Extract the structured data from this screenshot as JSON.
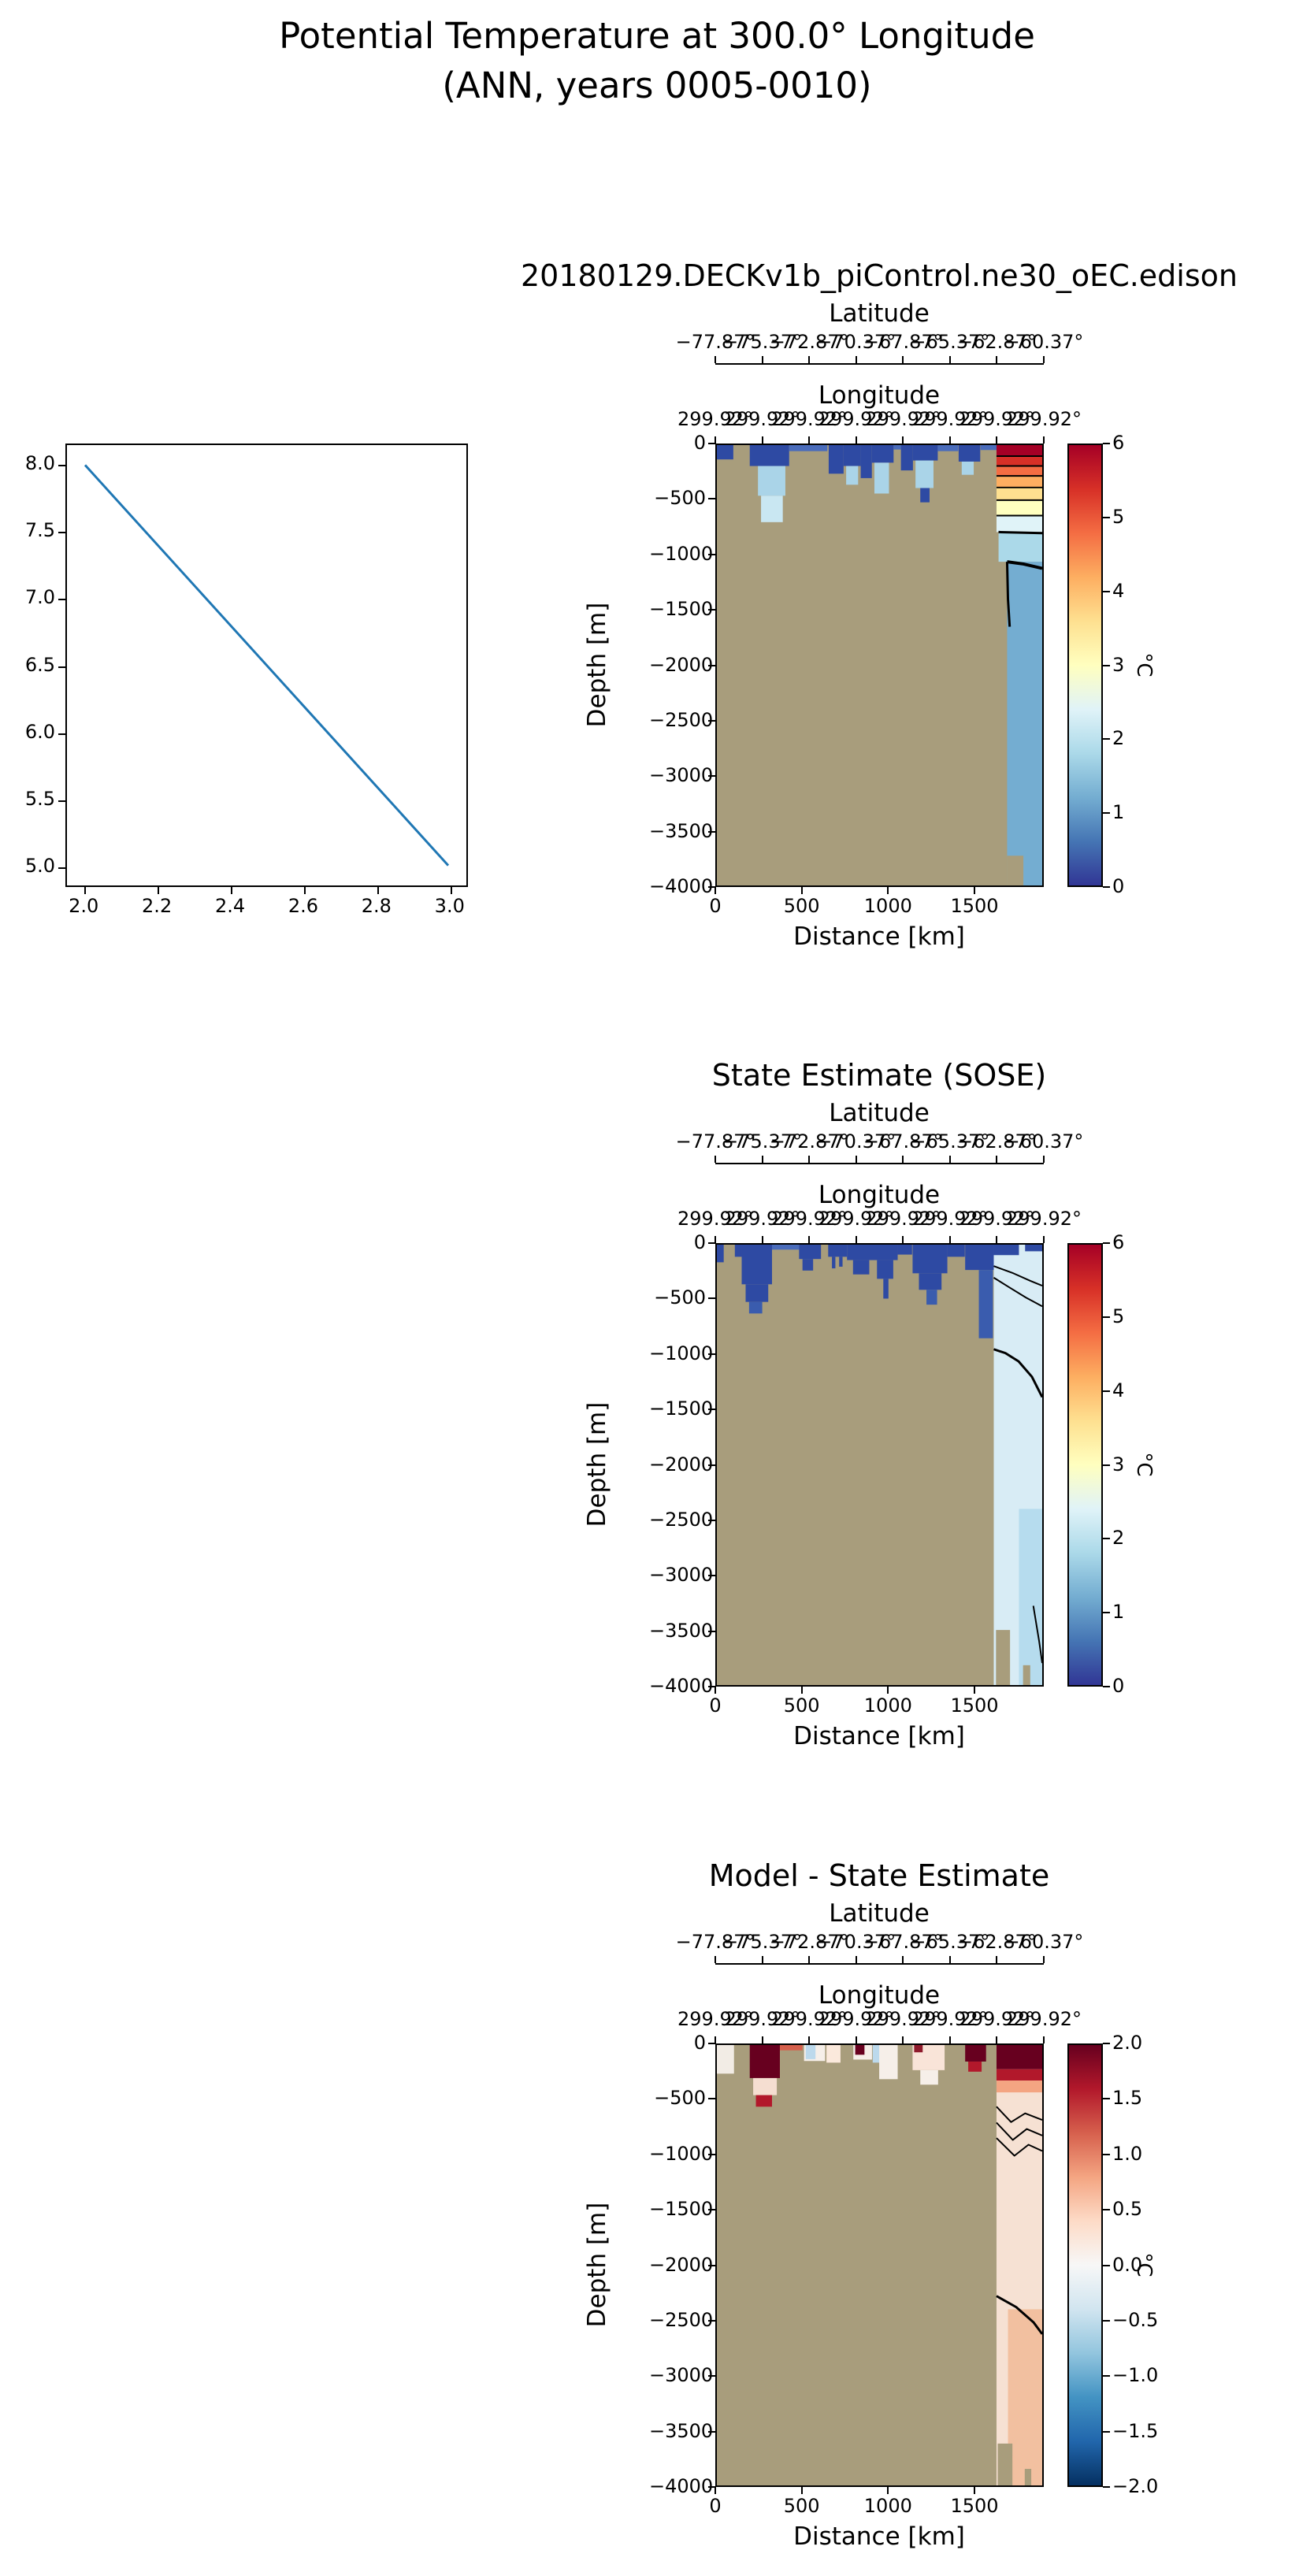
{
  "figure": {
    "title_line1": "Potential Temperature at 300.0° Longitude",
    "title_line2": "(ANN, years 0005-0010)"
  },
  "axes_common": {
    "latitude_label": "Latitude",
    "latitude_ticks": [
      "−77.87°",
      "−75.37°",
      "−72.87°",
      "−70.37°",
      "−67.87°",
      "−65.37°",
      "−62.87°",
      "−60.37°"
    ],
    "longitude_label": "Longitude",
    "longitude_ticks": [
      "299.92°",
      "299.92°",
      "299.92°",
      "299.92°",
      "299.92°",
      "299.92°",
      "299.92°",
      "299.92°"
    ],
    "depth_label": "Depth [m]",
    "depth_ticks": [
      "0",
      "−500",
      "−1000",
      "−1500",
      "−2000",
      "−2500",
      "−3000",
      "−3500",
      "−4000"
    ],
    "distance_label": "Distance [km]",
    "distance_ticks": [
      "0",
      "500",
      "1000",
      "1500"
    ],
    "colorbar_unit": "°C",
    "land_color": "#a89d7c"
  },
  "chart_data": [
    {
      "type": "line",
      "title": "",
      "x": [
        2.0,
        3.0
      ],
      "y": [
        8.0,
        5.0
      ],
      "xlim": [
        1.95,
        3.05
      ],
      "ylim": [
        4.85,
        8.15
      ],
      "x_ticks": [
        "2.0",
        "2.2",
        "2.4",
        "2.6",
        "2.8",
        "3.0"
      ],
      "x_tick_values": [
        2.0,
        2.2,
        2.4,
        2.6,
        2.8,
        3.0
      ],
      "y_ticks": [
        "8.0",
        "7.5",
        "7.0",
        "6.5",
        "6.0",
        "5.5",
        "5.0"
      ],
      "y_tick_values": [
        8.0,
        7.5,
        7.0,
        6.5,
        6.0,
        5.5,
        5.0
      ],
      "line_color": "#1f77b4"
    },
    {
      "type": "heatmap",
      "title": "20180129.DECKv1b_piControl.ne30_oEC.edison",
      "xlabel": "Distance [km]",
      "ylabel": "Depth [m]",
      "top_axis_1": "Latitude",
      "top_axis_2": "Longitude",
      "xlim_km": [
        0,
        1900
      ],
      "ylim_m": [
        0,
        -4000
      ],
      "colorbar": {
        "min": 0,
        "max": 6,
        "unit": "°C",
        "ticks_top_to_bottom": [
          "6",
          "5",
          "4",
          "3",
          "2",
          "1",
          "0"
        ],
        "colors_bottom_to_top": [
          "#313695",
          "#4575b4",
          "#74add1",
          "#abd9e9",
          "#e0f3f8",
          "#ffffbf",
          "#fee090",
          "#fdae61",
          "#f46d43",
          "#d73027",
          "#a50026"
        ]
      },
      "features": [
        [
          0,
          96,
          0,
          -130,
          "#2e4aa3"
        ],
        [
          192,
          422,
          0,
          -190,
          "#2e4aa3"
        ],
        [
          240,
          400,
          -190,
          -460,
          "#aad4e8"
        ],
        [
          258,
          385,
          -460,
          -700,
          "#c9e7f2"
        ],
        [
          422,
          645,
          0,
          -55,
          "#4a6cbb"
        ],
        [
          653,
          740,
          0,
          -260,
          "#2e4aa3"
        ],
        [
          740,
          840,
          0,
          -190,
          "#2e4aa3"
        ],
        [
          755,
          825,
          -190,
          -360,
          "#aad4e8"
        ],
        [
          840,
          905,
          0,
          -300,
          "#2e4aa3"
        ],
        [
          905,
          1032,
          0,
          -160,
          "#2e4aa3"
        ],
        [
          920,
          1005,
          -160,
          -440,
          "#aad4e8"
        ],
        [
          1032,
          1075,
          0,
          -40,
          "#4a6cbb"
        ],
        [
          1075,
          1145,
          0,
          -230,
          "#2e4aa3"
        ],
        [
          1145,
          1290,
          0,
          -140,
          "#2e4aa3"
        ],
        [
          1160,
          1265,
          -140,
          -390,
          "#aad4e8"
        ],
        [
          1188,
          1242,
          -390,
          -520,
          "#2e4aa3"
        ],
        [
          1290,
          1410,
          0,
          -55,
          "#4a6cbb"
        ],
        [
          1412,
          1538,
          0,
          -150,
          "#2e4aa3"
        ],
        [
          1430,
          1500,
          -150,
          -270,
          "#aad4e8"
        ],
        [
          1540,
          1633,
          0,
          -45,
          "#4a6cbb"
        ],
        [
          1633,
          1900,
          0,
          -100,
          "#a50026"
        ],
        [
          1633,
          1900,
          -100,
          -190,
          "#d73027"
        ],
        [
          1633,
          1900,
          -190,
          -280,
          "#f46d43"
        ],
        [
          1633,
          1900,
          -280,
          -385,
          "#fdae61"
        ],
        [
          1633,
          1900,
          -385,
          -500,
          "#fee090"
        ],
        [
          1633,
          1900,
          -500,
          -640,
          "#ffffbf"
        ],
        [
          1633,
          1900,
          -640,
          -790,
          "#e0f3f8"
        ],
        [
          1645,
          1900,
          -790,
          -1060,
          "#abd9e9"
        ],
        [
          1695,
          1900,
          -1060,
          -4000,
          "#74add1"
        ],
        [
          1695,
          1790,
          -3730,
          -4000,
          "#a89d7c"
        ]
      ],
      "contours": [
        {
          "w": 2,
          "pts": [
            [
              1633,
              -100
            ],
            [
              1900,
              -100
            ]
          ]
        },
        {
          "w": 2,
          "pts": [
            [
              1633,
              -190
            ],
            [
              1900,
              -190
            ]
          ]
        },
        {
          "w": 2,
          "pts": [
            [
              1633,
              -280
            ],
            [
              1900,
              -280
            ]
          ]
        },
        {
          "w": 2,
          "pts": [
            [
              1633,
              -385
            ],
            [
              1900,
              -385
            ]
          ]
        },
        {
          "w": 2,
          "pts": [
            [
              1633,
              -500
            ],
            [
              1900,
              -500
            ]
          ]
        },
        {
          "w": 2,
          "pts": [
            [
              1633,
              -640
            ],
            [
              1900,
              -640
            ]
          ]
        },
        {
          "w": 3,
          "pts": [
            [
              1645,
              -790
            ],
            [
              1900,
              -800
            ]
          ]
        },
        {
          "w": 4,
          "pts": [
            [
              1695,
              -1060
            ],
            [
              1790,
              -1080
            ],
            [
              1900,
              -1120
            ]
          ]
        },
        {
          "w": 3,
          "pts": [
            [
              1695,
              -1060
            ],
            [
              1700,
              -1400
            ],
            [
              1710,
              -1650
            ]
          ]
        }
      ]
    },
    {
      "type": "heatmap",
      "title": "State Estimate (SOSE)",
      "xlabel": "Distance [km]",
      "ylabel": "Depth [m]",
      "top_axis_1": "Latitude",
      "top_axis_2": "Longitude",
      "xlim_km": [
        0,
        1900
      ],
      "ylim_m": [
        0,
        -4000
      ],
      "colorbar": {
        "min": 0,
        "max": 6,
        "unit": "°C",
        "ticks_top_to_bottom": [
          "6",
          "5",
          "4",
          "3",
          "2",
          "1",
          "0"
        ],
        "colors_bottom_to_top": [
          "#313695",
          "#4575b4",
          "#74add1",
          "#abd9e9",
          "#e0f3f8",
          "#ffffbf",
          "#fee090",
          "#fdae61",
          "#f46d43",
          "#d73027",
          "#a50026"
        ]
      },
      "features": [
        [
          0,
          40,
          0,
          -160,
          "#2e4aa3"
        ],
        [
          105,
          145,
          0,
          -110,
          "#2e4aa3"
        ],
        [
          145,
          322,
          0,
          -360,
          "#2e4aa3"
        ],
        [
          168,
          300,
          -360,
          -520,
          "#2e4aa3"
        ],
        [
          188,
          265,
          -520,
          -625,
          "#3a5cae"
        ],
        [
          322,
          480,
          0,
          -45,
          "#4a6cbb"
        ],
        [
          480,
          608,
          0,
          -130,
          "#2e4aa3"
        ],
        [
          500,
          562,
          -130,
          -235,
          "#2e4aa3"
        ],
        [
          650,
          760,
          0,
          -110,
          "#2e4aa3"
        ],
        [
          672,
          692,
          -110,
          -215,
          "#2e4aa3"
        ],
        [
          714,
          734,
          -110,
          -200,
          "#2e4aa3"
        ],
        [
          760,
          1056,
          0,
          -140,
          "#2e4aa3"
        ],
        [
          795,
          890,
          -140,
          -270,
          "#2e4aa3"
        ],
        [
          935,
          1030,
          -140,
          -310,
          "#2e4aa3"
        ],
        [
          972,
          1002,
          -310,
          -490,
          "#2e4aa3"
        ],
        [
          1056,
          1140,
          0,
          -90,
          "#2e4aa3"
        ],
        [
          1143,
          1346,
          0,
          -260,
          "#2e4aa3"
        ],
        [
          1180,
          1312,
          -260,
          -410,
          "#2e4aa3"
        ],
        [
          1224,
          1286,
          -410,
          -545,
          "#3a5cae"
        ],
        [
          1346,
          1448,
          0,
          -110,
          "#2e4aa3"
        ],
        [
          1450,
          1617,
          0,
          -230,
          "#2e4aa3"
        ],
        [
          1530,
          1612,
          -230,
          -850,
          "#3a5cae"
        ],
        [
          1617,
          1900,
          0,
          -4000,
          "#d8ecf5"
        ],
        [
          1617,
          1764,
          0,
          -95,
          "#2e4aa3"
        ],
        [
          1800,
          1900,
          0,
          -60,
          "#2e4aa3"
        ],
        [
          1764,
          1900,
          -2400,
          -4000,
          "#b6dcee"
        ],
        [
          1630,
          1712,
          -3500,
          -4000,
          "#a89d7c"
        ],
        [
          1788,
          1830,
          -3820,
          -4000,
          "#a89d7c"
        ]
      ],
      "contours": [
        {
          "w": 2,
          "pts": [
            [
              1617,
              -195
            ],
            [
              1724,
              -255
            ],
            [
              1832,
              -330
            ],
            [
              1900,
              -372
            ]
          ]
        },
        {
          "w": 2,
          "pts": [
            [
              1617,
              -300
            ],
            [
              1705,
              -385
            ],
            [
              1805,
              -480
            ],
            [
              1900,
              -560
            ]
          ]
        },
        {
          "w": 3,
          "pts": [
            [
              1617,
              -950
            ],
            [
              1685,
              -985
            ],
            [
              1762,
              -1060
            ],
            [
              1840,
              -1200
            ],
            [
              1900,
              -1385
            ]
          ]
        },
        {
          "w": 2,
          "pts": [
            [
              1848,
              -3280
            ],
            [
              1882,
              -3600
            ],
            [
              1900,
              -3800
            ]
          ]
        }
      ]
    },
    {
      "type": "heatmap",
      "title": "Model - State Estimate",
      "xlabel": "Distance [km]",
      "ylabel": "Depth [m]",
      "top_axis_1": "Latitude",
      "top_axis_2": "Longitude",
      "xlim_km": [
        0,
        1900
      ],
      "ylim_m": [
        0,
        -4000
      ],
      "colorbar": {
        "min": -2.0,
        "max": 2.0,
        "unit": "°C",
        "ticks_top_to_bottom": [
          "2.0",
          "1.5",
          "1.0",
          "0.5",
          "0.0",
          "−0.5",
          "−1.0",
          "−1.5",
          "−2.0"
        ],
        "colors_bottom_to_top": [
          "#053061",
          "#2166ac",
          "#4393c3",
          "#92c5de",
          "#d1e5f0",
          "#f7f7f7",
          "#fddbc7",
          "#f4a582",
          "#d6604d",
          "#b2182b",
          "#67001f"
        ]
      },
      "features": [
        [
          0,
          100,
          0,
          -260,
          "#f2ece5"
        ],
        [
          192,
          368,
          0,
          -300,
          "#67001f"
        ],
        [
          212,
          350,
          -300,
          -455,
          "#f5ded1"
        ],
        [
          228,
          322,
          -455,
          -560,
          "#b2182b"
        ],
        [
          368,
          500,
          0,
          -48,
          "#d6604d"
        ],
        [
          509,
          632,
          0,
          -145,
          "#f6efe9"
        ],
        [
          519,
          576,
          0,
          -128,
          "#bcd9ec"
        ],
        [
          640,
          722,
          0,
          -160,
          "#fbe9dc"
        ],
        [
          797,
          906,
          0,
          -132,
          "#f6efe9"
        ],
        [
          808,
          862,
          0,
          -88,
          "#67001f"
        ],
        [
          910,
          1002,
          0,
          -160,
          "#bcd9ec"
        ],
        [
          948,
          1056,
          0,
          -310,
          "#f6efe9"
        ],
        [
          1143,
          1330,
          0,
          -228,
          "#f9e4d8"
        ],
        [
          1188,
          1292,
          -228,
          -360,
          "#f6efe9"
        ],
        [
          1152,
          1202,
          0,
          -66,
          "#8f1b2c"
        ],
        [
          1450,
          1572,
          0,
          -150,
          "#67001f"
        ],
        [
          1468,
          1546,
          -150,
          -242,
          "#b2182b"
        ],
        [
          1633,
          1900,
          0,
          -4000,
          "#f6e1d3"
        ],
        [
          1633,
          1900,
          0,
          -220,
          "#67001f"
        ],
        [
          1633,
          1900,
          -220,
          -322,
          "#b2182b"
        ],
        [
          1633,
          1900,
          -322,
          -430,
          "#f4a582"
        ],
        [
          1700,
          1900,
          -2400,
          -4000,
          "#f2c0a0"
        ],
        [
          1640,
          1726,
          -3620,
          -4000,
          "#a89d7c"
        ],
        [
          1798,
          1836,
          -3850,
          -4000,
          "#a89d7c"
        ]
      ],
      "contours": [
        {
          "w": 2,
          "pts": [
            [
              1633,
              -560
            ],
            [
              1718,
              -700
            ],
            [
              1800,
              -620
            ],
            [
              1900,
              -680
            ]
          ]
        },
        {
          "w": 2,
          "pts": [
            [
              1633,
              -705
            ],
            [
              1728,
              -862
            ],
            [
              1810,
              -762
            ],
            [
              1900,
              -822
            ]
          ]
        },
        {
          "w": 2,
          "pts": [
            [
              1633,
              -845
            ],
            [
              1738,
              -1005
            ],
            [
              1820,
              -905
            ],
            [
              1900,
              -962
            ]
          ]
        },
        {
          "w": 3,
          "pts": [
            [
              1633,
              -2280
            ],
            [
              1748,
              -2380
            ],
            [
              1850,
              -2520
            ],
            [
              1900,
              -2625
            ]
          ]
        }
      ]
    }
  ]
}
